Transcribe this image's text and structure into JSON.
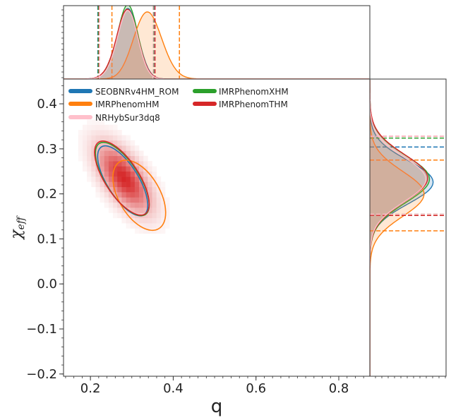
{
  "chart_data": {
    "type": "corner",
    "title": "",
    "xlabel": "q",
    "ylabel_main": "χ",
    "ylabel_sub": "eff",
    "xlim": [
      0.135,
      0.875
    ],
    "ylim": [
      -0.205,
      0.455
    ],
    "x_ticks": [
      0.2,
      0.4,
      0.6,
      0.8
    ],
    "x_tick_labels": [
      "0.2",
      "0.4",
      "0.6",
      "0.8"
    ],
    "y_ticks": [
      -0.2,
      -0.1,
      0.0,
      0.1,
      0.2,
      0.3,
      0.4
    ],
    "y_tick_labels": [
      "−0.2",
      "−0.1",
      "0.0",
      "0.1",
      "0.2",
      "0.3",
      "0.4"
    ],
    "legend": {
      "placement": "top-left",
      "entries": [
        {
          "label": "SEOBNRv4HM_ROM",
          "color": "#1f77b4"
        },
        {
          "label": "IMRPhenomXHM",
          "color": "#2ca02c"
        },
        {
          "label": "IMRPhenomHM",
          "color": "#ff7f0e"
        },
        {
          "label": "IMRPhenomTHM",
          "color": "#d62728"
        },
        {
          "label": "NRHybSur3dq8",
          "color": "#ffc0cb"
        }
      ]
    },
    "series": [
      {
        "name": "SEOBNRv4HM_ROM",
        "color": "#1f77b4",
        "contour_90": {
          "cx": 0.278,
          "cy": 0.229,
          "sx": 0.038,
          "sy": 0.089,
          "angle_deg": -32
        },
        "q_marginal": {
          "mean": 0.283,
          "sd": 0.027,
          "skew": 0.01,
          "peak_norm": 0.98,
          "ci": [
            0.218,
            0.353
          ]
        },
        "chi_marginal": {
          "mean": 0.226,
          "sd": 0.048,
          "skew": 0.0,
          "peak_norm": 0.7,
          "ci": [
            0.152,
            0.304
          ]
        }
      },
      {
        "name": "IMRPhenomXHM",
        "color": "#2ca02c",
        "contour_90": {
          "cx": 0.277,
          "cy": 0.233,
          "sx": 0.04,
          "sy": 0.094,
          "angle_deg": -33
        },
        "q_marginal": {
          "mean": 0.283,
          "sd": 0.026,
          "skew": 0.01,
          "peak_norm": 1.03,
          "ci": [
            0.219,
            0.352
          ]
        },
        "chi_marginal": {
          "mean": 0.233,
          "sd": 0.052,
          "skew": 0.0,
          "peak_norm": 0.66,
          "ci": [
            0.155,
            0.324
          ]
        }
      },
      {
        "name": "IMRPhenomHM",
        "color": "#ff7f0e",
        "contour_90": {
          "cx": 0.318,
          "cy": 0.197,
          "sx": 0.05,
          "sy": 0.086,
          "angle_deg": -30
        },
        "q_marginal": {
          "mean": 0.318,
          "sd": 0.04,
          "skew": 0.035,
          "peak_norm": 0.82,
          "ci": [
            0.252,
            0.415
          ]
        },
        "chi_marginal": {
          "mean": 0.2,
          "sd": 0.05,
          "skew": 0.0,
          "peak_norm": 0.6,
          "ci": [
            0.118,
            0.275
          ]
        }
      },
      {
        "name": "IMRPhenomTHM",
        "color": "#d62728",
        "contour_90": {
          "cx": 0.276,
          "cy": 0.235,
          "sx": 0.041,
          "sy": 0.095,
          "angle_deg": -33
        },
        "q_marginal": {
          "mean": 0.282,
          "sd": 0.027,
          "skew": 0.01,
          "peak_norm": 0.97,
          "ci": [
            0.221,
            0.356
          ]
        },
        "chi_marginal": {
          "mean": 0.235,
          "sd": 0.052,
          "skew": 0.0,
          "peak_norm": 0.64,
          "ci": [
            0.152,
            0.328
          ]
        }
      },
      {
        "name": "NRHybSur3dq8",
        "color": "#ffc0cb",
        "heatmap": {
          "cx": 0.281,
          "cy": 0.235,
          "sx": 0.03,
          "sy": 0.058,
          "angle_deg": -34
        },
        "q_marginal": {
          "mean": 0.283,
          "sd": 0.026,
          "skew": 0.01,
          "peak_norm": 0.95,
          "ci": [
            0.222,
            0.351
          ]
        },
        "chi_marginal": {
          "mean": 0.232,
          "sd": 0.05,
          "skew": 0.0,
          "peak_norm": 0.62,
          "ci": [
            0.155,
            0.328
          ]
        }
      }
    ]
  }
}
